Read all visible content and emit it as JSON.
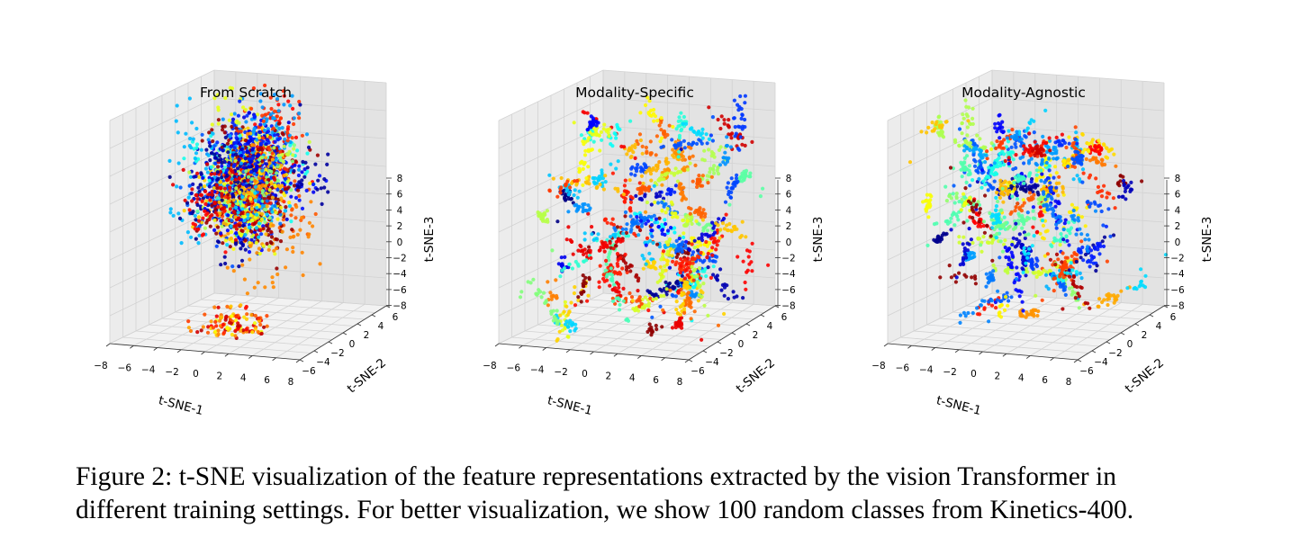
{
  "figure": {
    "number": "Figure 2:",
    "caption_line1": "t-SNE visualization of the feature representations extracted by the vision Transformer in",
    "caption_line2": "different training settings. For better visualization, we show 100 random classes from Kinetics-400."
  },
  "colors": {
    "pane_left": "#ececec",
    "pane_right": "#e3e3e3",
    "pane_floor": "#f2f2f2",
    "grid": "#d2d2d2",
    "colormap": "jet"
  },
  "chart_data": [
    {
      "type": "scatter3d",
      "title": "From Scratch",
      "xlabel": "t-SNE-1",
      "ylabel": "t-SNE-2",
      "zlabel": "t-SNE-3",
      "x_ticks": [
        -8,
        -6,
        -4,
        -2,
        0,
        2,
        4,
        6,
        8
      ],
      "y_ticks": [
        -6,
        -4,
        -2,
        0,
        2,
        4,
        6
      ],
      "z_ticks": [
        -8,
        -6,
        -4,
        -2,
        0,
        2,
        4,
        6,
        8
      ],
      "xlim": [
        -8,
        8
      ],
      "ylim": [
        -6,
        6
      ],
      "zlim": [
        -8,
        8
      ],
      "num_classes": 100,
      "distribution": "dense"
    },
    {
      "type": "scatter3d",
      "title": "Modality-Specific",
      "xlabel": "t-SNE-1",
      "ylabel": "t-SNE-2",
      "zlabel": "t-SNE-3",
      "x_ticks": [
        -8,
        -6,
        -4,
        -2,
        0,
        2,
        4,
        6,
        8
      ],
      "y_ticks": [
        -6,
        -4,
        -2,
        0,
        2,
        4,
        6
      ],
      "z_ticks": [
        -8,
        -6,
        -4,
        -2,
        0,
        2,
        4,
        6,
        8
      ],
      "xlim": [
        -8,
        8
      ],
      "ylim": [
        -6,
        6
      ],
      "zlim": [
        -8,
        8
      ],
      "num_classes": 100,
      "distribution": "clustered"
    },
    {
      "type": "scatter3d",
      "title": "Modality-Agnostic",
      "xlabel": "t-SNE-1",
      "ylabel": "t-SNE-2",
      "zlabel": "t-SNE-3",
      "x_ticks": [
        -8,
        -6,
        -4,
        -2,
        0,
        2,
        4,
        6,
        8
      ],
      "y_ticks": [
        -6,
        -4,
        -2,
        0,
        2,
        4,
        6
      ],
      "z_ticks": [
        -8,
        -6,
        -4,
        -2,
        0,
        2,
        4,
        6,
        8
      ],
      "xlim": [
        -8,
        8
      ],
      "ylim": [
        -6,
        6
      ],
      "zlim": [
        -8,
        8
      ],
      "num_classes": 100,
      "distribution": "clustered"
    }
  ]
}
